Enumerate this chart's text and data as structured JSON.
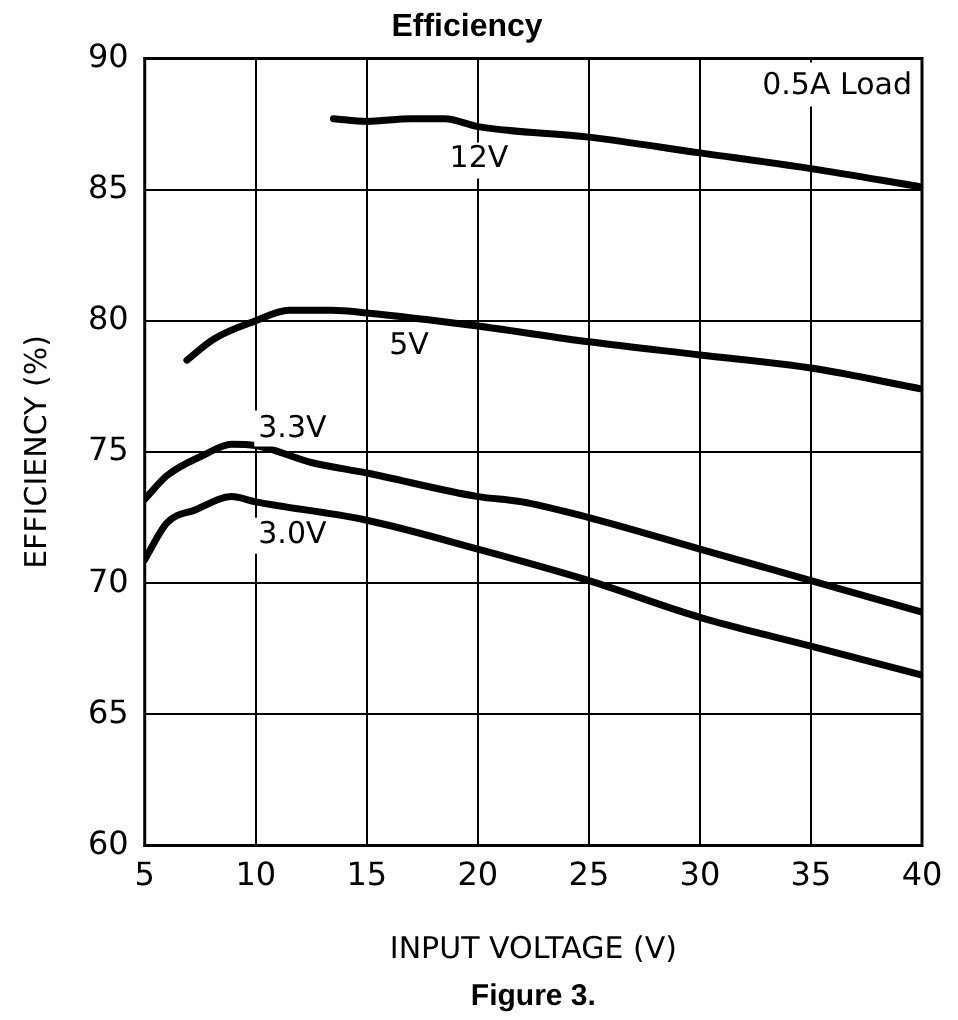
{
  "chart_data": {
    "type": "line",
    "title": "Efficiency",
    "xlabel": "INPUT VOLTAGE (V)",
    "ylabel": "EFFICIENCY (%)",
    "annotations": [
      "0.5A Load",
      "Figure 3."
    ],
    "series": [
      {
        "name": "12V",
        "color": "#000000",
        "x": [
          13.5,
          15,
          17,
          18.5,
          20,
          25,
          30,
          35,
          40
        ],
        "values": [
          87.7,
          87.6,
          87.7,
          87.7,
          87.4,
          87.0,
          86.4,
          85.8,
          85.1
        ]
      },
      {
        "name": "5V",
        "color": "#000000",
        "x": [
          6.9,
          8.1,
          10,
          11.5,
          13.4,
          15,
          20,
          25,
          30,
          35,
          40
        ],
        "values": [
          78.5,
          79.3,
          80.0,
          80.4,
          80.4,
          80.3,
          79.8,
          79.2,
          78.7,
          78.2,
          77.4
        ]
      },
      {
        "name": "3.3V",
        "color": "#000000",
        "x": [
          5,
          6,
          7.7,
          8.9,
          10,
          12.5,
          15,
          20,
          22,
          25,
          30,
          35,
          40
        ],
        "values": [
          73.2,
          74.1,
          74.9,
          75.3,
          75.25,
          74.6,
          74.2,
          73.3,
          73.1,
          72.5,
          71.3,
          70.1,
          68.9
        ]
      },
      {
        "name": "3.0V",
        "color": "#000000",
        "x": [
          5,
          6,
          7.3,
          8.9,
          10,
          15,
          20,
          25,
          30,
          35,
          40
        ],
        "values": [
          70.9,
          72.3,
          72.8,
          73.3,
          73.1,
          72.4,
          71.3,
          70.1,
          68.7,
          67.6,
          66.5
        ]
      }
    ],
    "xlim": [
      5,
      40
    ],
    "xticks": [
      5,
      10,
      15,
      20,
      25,
      30,
      35,
      40
    ],
    "ylim": [
      60,
      90
    ],
    "yticks": [
      60,
      65,
      70,
      75,
      80,
      85,
      90
    ],
    "grid": true,
    "legend": false,
    "marker": "none",
    "line_style": "solid"
  }
}
